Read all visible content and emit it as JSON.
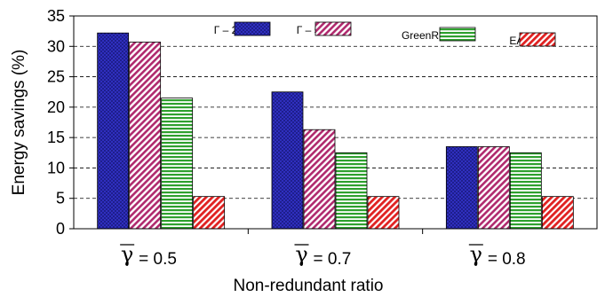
{
  "chart_data": {
    "type": "bar",
    "ylabel": "Energy savings (%)",
    "xlabel": "Non-redundant ratio",
    "ylim": [
      0,
      35
    ],
    "yticks": [
      0,
      5,
      10,
      15,
      20,
      25,
      30,
      35
    ],
    "grid": true,
    "legend_position": "top",
    "categories": [
      {
        "symbol": "γ",
        "text": "= 0.5"
      },
      {
        "symbol": "γ",
        "text": "= 0.7"
      },
      {
        "symbol": "γ",
        "text": "= 0.8"
      }
    ],
    "series": [
      {
        "name": "Γ – 2%",
        "values": [
          32.2,
          22.5,
          13.5
        ],
        "color": "#3333cc",
        "pattern": "crosshatch"
      },
      {
        "name": "Γ – 5%",
        "values": [
          30.7,
          16.3,
          13.5
        ],
        "color": "#b02a6e",
        "pattern": "diagonal"
      },
      {
        "name": "GreenRE",
        "values": [
          21.5,
          12.5,
          12.5
        ],
        "color": "#2ea02e",
        "pattern": "horizontal"
      },
      {
        "name": "EAR",
        "values": [
          5.3,
          5.3,
          5.3
        ],
        "color": "#e02020",
        "pattern": "diagonal"
      }
    ]
  }
}
